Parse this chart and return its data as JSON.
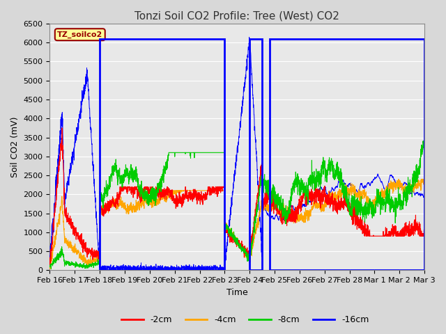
{
  "title": "Tonzi Soil CO2 Profile: Tree (West) CO2",
  "ylabel": "Soil CO2 (mV)",
  "xlabel": "Time",
  "ylim": [
    0,
    6500
  ],
  "yticks": [
    0,
    500,
    1000,
    1500,
    2000,
    2500,
    3000,
    3500,
    4000,
    4500,
    5000,
    5500,
    6000,
    6500
  ],
  "legend_label": "TZ_soilco2",
  "legend_color": "#990000",
  "legend_bg": "#ffff99",
  "line_colors": {
    "-2cm": "#ff0000",
    "-4cm": "#ffa500",
    "-8cm": "#00cc00",
    "-16cm": "#0000ff"
  },
  "rect_color": "#0000ff",
  "background_color": "#d8d8d8",
  "plot_bg": "#e8e8e8",
  "grid_color": "#ffffff",
  "title_fontsize": 11,
  "axis_fontsize": 9,
  "tick_fontsize": 8
}
